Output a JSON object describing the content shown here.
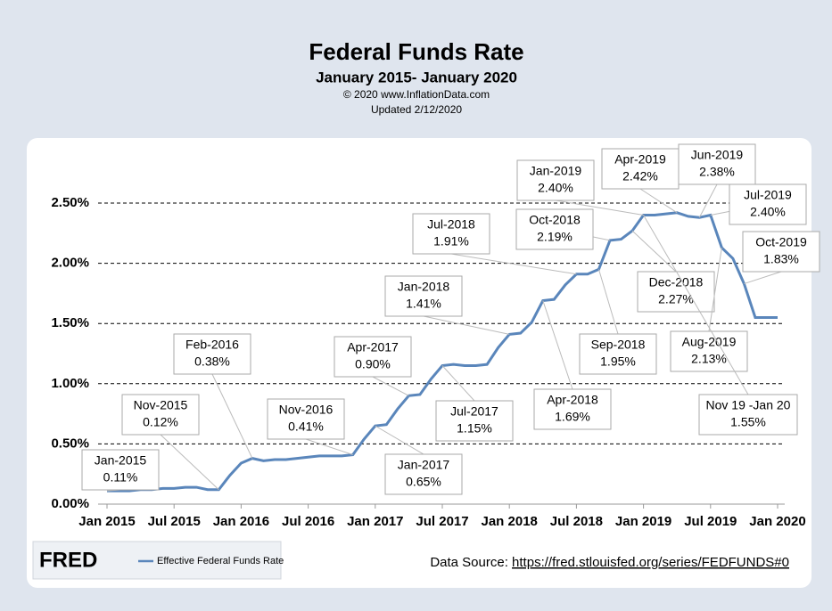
{
  "chart_data": {
    "type": "line",
    "title": "Federal Funds Rate",
    "subtitle": "January 2015- January 2020",
    "copyright": "© 2020  www.InflationData.com",
    "updated": "Updated  2/12/2020",
    "source_label": "Data Source: ",
    "source_url": "https://fred.stlouisfed.org/series/FEDFUNDS#0",
    "logo": "FRED",
    "categories": [
      "Jan 2015",
      null,
      null,
      null,
      null,
      null,
      "Jul 2015",
      null,
      null,
      null,
      null,
      null,
      "Jan 2016",
      null,
      null,
      null,
      null,
      null,
      "Jul 2016",
      null,
      null,
      null,
      null,
      null,
      "Jan 2017",
      null,
      null,
      null,
      null,
      null,
      "Jul 2017",
      null,
      null,
      null,
      null,
      null,
      "Jan 2018",
      null,
      null,
      null,
      null,
      null,
      "Jul 2018",
      null,
      null,
      null,
      null,
      null,
      "Jan 2019",
      null,
      null,
      null,
      null,
      null,
      "Jul 2019",
      null,
      null,
      null,
      null,
      null,
      "Jan 2020"
    ],
    "series": [
      {
        "name": "Effective Federal Funds Rate",
        "color": "#5a86bb",
        "values": [
          0.11,
          0.11,
          0.11,
          0.12,
          0.12,
          0.13,
          0.13,
          0.14,
          0.14,
          0.12,
          0.12,
          0.24,
          0.34,
          0.38,
          0.36,
          0.37,
          0.37,
          0.38,
          0.39,
          0.4,
          0.4,
          0.4,
          0.41,
          0.54,
          0.65,
          0.66,
          0.79,
          0.9,
          0.91,
          1.04,
          1.15,
          1.16,
          1.15,
          1.15,
          1.16,
          1.3,
          1.41,
          1.42,
          1.51,
          1.69,
          1.7,
          1.82,
          1.91,
          1.91,
          1.95,
          2.19,
          2.2,
          2.27,
          2.4,
          2.4,
          2.41,
          2.42,
          2.39,
          2.38,
          2.4,
          2.13,
          2.04,
          1.83,
          1.55,
          1.55,
          1.55
        ]
      }
    ],
    "ylim": [
      0,
      2.5
    ],
    "yticks": [
      {
        "value": 0,
        "label": "0.00%"
      },
      {
        "value": 0.5,
        "label": "0.50%"
      },
      {
        "value": 1,
        "label": "1.00%"
      },
      {
        "value": 1.5,
        "label": "1.50%"
      },
      {
        "value": 2,
        "label": "2.00%"
      },
      {
        "value": 2.5,
        "label": "2.50%"
      }
    ],
    "grid": true,
    "annotations": [
      {
        "date": "Jan-2015",
        "value_label": "0.11%"
      },
      {
        "date": "Nov-2015",
        "value_label": "0.12%"
      },
      {
        "date": "Feb-2016",
        "value_label": "0.38%"
      },
      {
        "date": "Nov-2016",
        "value_label": "0.41%"
      },
      {
        "date": "Apr-2017",
        "value_label": "0.90%"
      },
      {
        "date": "Jan-2017",
        "value_label": "0.65%"
      },
      {
        "date": "Jul-2017",
        "value_label": "1.15%"
      },
      {
        "date": "Jan-2018",
        "value_label": "1.41%"
      },
      {
        "date": "Jul-2018",
        "value_label": "1.91%"
      },
      {
        "date": "Apr-2018",
        "value_label": "1.69%"
      },
      {
        "date": "Sep-2018",
        "value_label": "1.95%"
      },
      {
        "date": "Oct-2018",
        "value_label": "2.19%"
      },
      {
        "date": "Jan-2019",
        "value_label": "2.40%"
      },
      {
        "date": "Apr-2019",
        "value_label": "2.42%"
      },
      {
        "date": "Dec-2018",
        "value_label": "2.27%"
      },
      {
        "date": "Jun-2019",
        "value_label": "2.38%"
      },
      {
        "date": "Jul-2019",
        "value_label": "2.40%"
      },
      {
        "date": "Aug-2019",
        "value_label": "2.13%"
      },
      {
        "date": "Oct-2019",
        "value_label": "1.83%"
      },
      {
        "date": "Nov 19 -Jan 20",
        "value_label": "1.55%"
      }
    ]
  }
}
